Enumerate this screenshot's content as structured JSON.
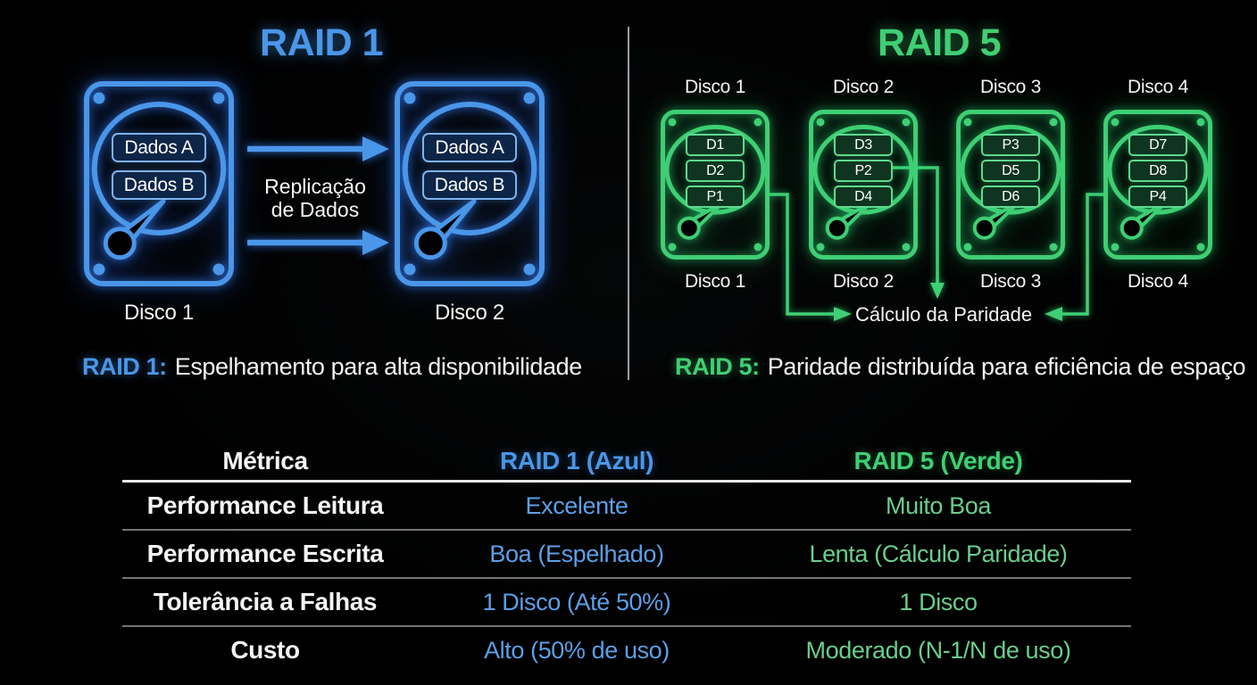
{
  "raid1": {
    "title": "RAID 1",
    "disks": [
      {
        "name": "Disco 1",
        "blocks": [
          "Dados A",
          "Dados B"
        ]
      },
      {
        "name": "Disco 2",
        "blocks": [
          "Dados A",
          "Dados B"
        ]
      }
    ],
    "arrow_label_line1": "Replicação",
    "arrow_label_line2": "de Dados",
    "caption_prefix": "RAID 1:",
    "caption": "Espelhamento para alta disponibilidade"
  },
  "raid5": {
    "title": "RAID 5",
    "disks": [
      {
        "name": "Disco 1",
        "blocks": [
          "D1",
          "D2",
          "P1"
        ]
      },
      {
        "name": "Disco 2",
        "blocks": [
          "D3",
          "P2",
          "D4"
        ]
      },
      {
        "name": "Disco 3",
        "blocks": [
          "P3",
          "D5",
          "D6"
        ]
      },
      {
        "name": "Disco 4",
        "blocks": [
          "D7",
          "D8",
          "P4"
        ]
      }
    ],
    "parity_label": "Cálculo da Paridade",
    "caption_prefix": "RAID 5:",
    "caption": "Paridade distribuída para eficiência de espaço"
  },
  "table": {
    "headers": [
      "Métrica",
      "RAID 1 (Azul)",
      "RAID 5 (Verde)"
    ],
    "rows": [
      {
        "metric": "Performance Leitura",
        "raid1": "Excelente",
        "raid5": "Muito Boa"
      },
      {
        "metric": "Performance Escrita",
        "raid1": "Boa (Espelhado)",
        "raid5": "Lenta (Cálculo Paridade)"
      },
      {
        "metric": "Tolerância a Falhas",
        "raid1": "1 Disco (Até 50%)",
        "raid5": "1 Disco"
      },
      {
        "metric": "Custo",
        "raid1": "Alto (50% de uso)",
        "raid5": "Moderado (N-1/N de uso)"
      }
    ]
  },
  "colors": {
    "blue": "#4a96e8",
    "green": "#3fcf74"
  }
}
